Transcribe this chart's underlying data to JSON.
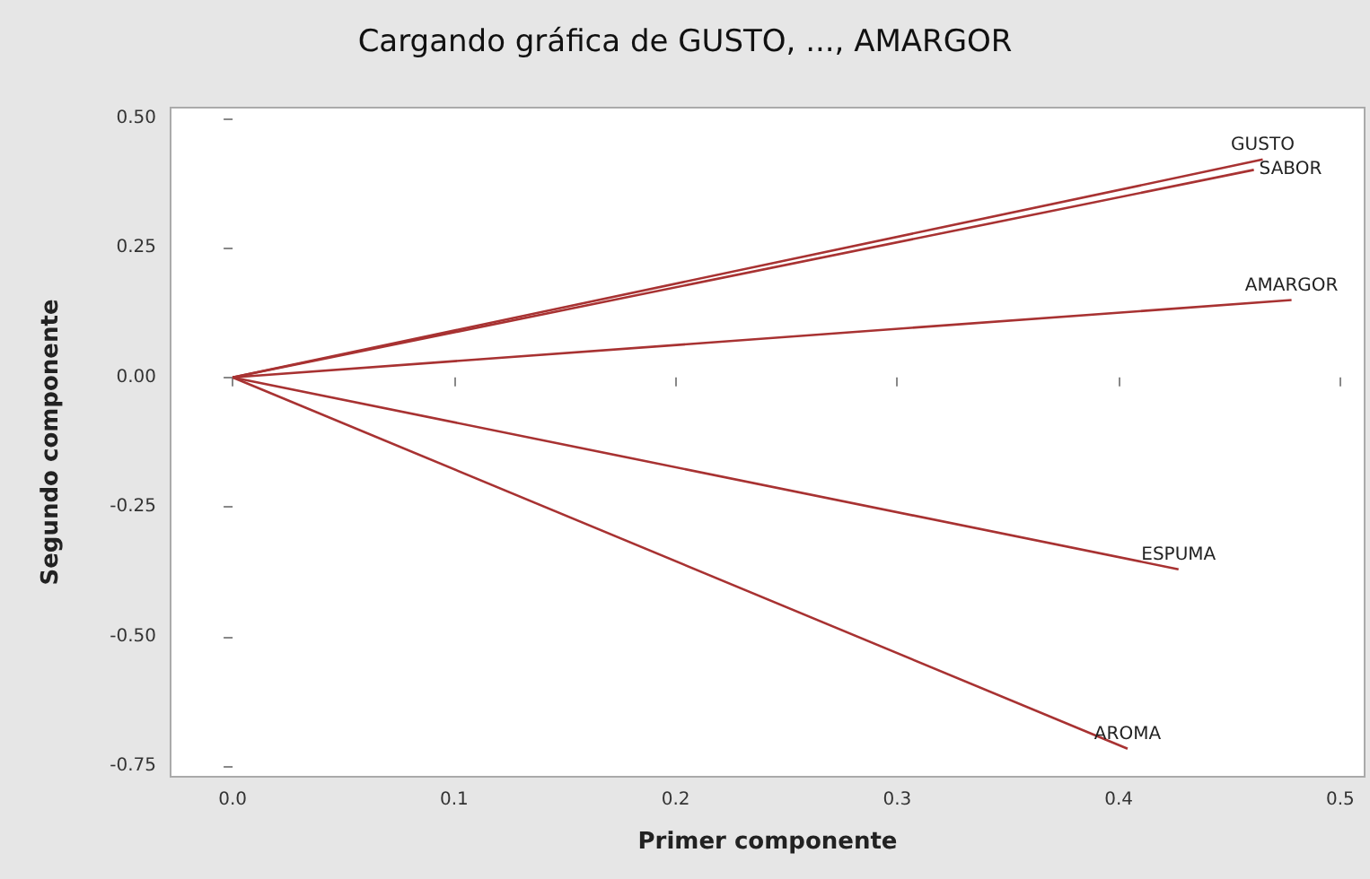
{
  "chart_data": {
    "type": "line",
    "title": "Cargando gráfica de GUSTO, ..., AMARGOR",
    "xlabel": "Primer componente",
    "ylabel": "Segundo componente",
    "xlim": [
      -0.028,
      0.511
    ],
    "ylim": [
      -0.77,
      0.52
    ],
    "xticks": [
      {
        "value": 0,
        "label": "0.0"
      },
      0.1,
      0.2,
      0.3,
      0.4,
      0.5
    ],
    "yticks": [
      {
        "value": -0.75,
        "label": "-0.75"
      },
      {
        "value": -0.5,
        "label": "-0.50"
      },
      {
        "value": -0.25,
        "label": "-0.25"
      },
      {
        "value": 0,
        "label": "0.00"
      },
      0.25,
      {
        "value": 0.5,
        "label": "0.50"
      }
    ],
    "grid": false,
    "legend": false,
    "marker": "none",
    "line_style": "solid",
    "series": [
      {
        "name": "GUSTO",
        "color": "#a83232",
        "x": [
          0,
          0.465
        ],
        "values": [
          0,
          0.42
        ]
      },
      {
        "name": "SABOR",
        "color": "#a83232",
        "x": [
          0,
          0.461
        ],
        "values": [
          0,
          0.4
        ]
      },
      {
        "name": "AMARGOR",
        "color": "#a83232",
        "x": [
          0,
          0.478
        ],
        "values": [
          0,
          0.149
        ]
      },
      {
        "name": "ESPUMA",
        "color": "#a83232",
        "x": [
          0,
          0.427
        ],
        "values": [
          0,
          -0.37
        ]
      },
      {
        "name": "AROMA",
        "color": "#a83232",
        "x": [
          0,
          0.404
        ],
        "values": [
          0,
          -0.716
        ]
      }
    ]
  }
}
